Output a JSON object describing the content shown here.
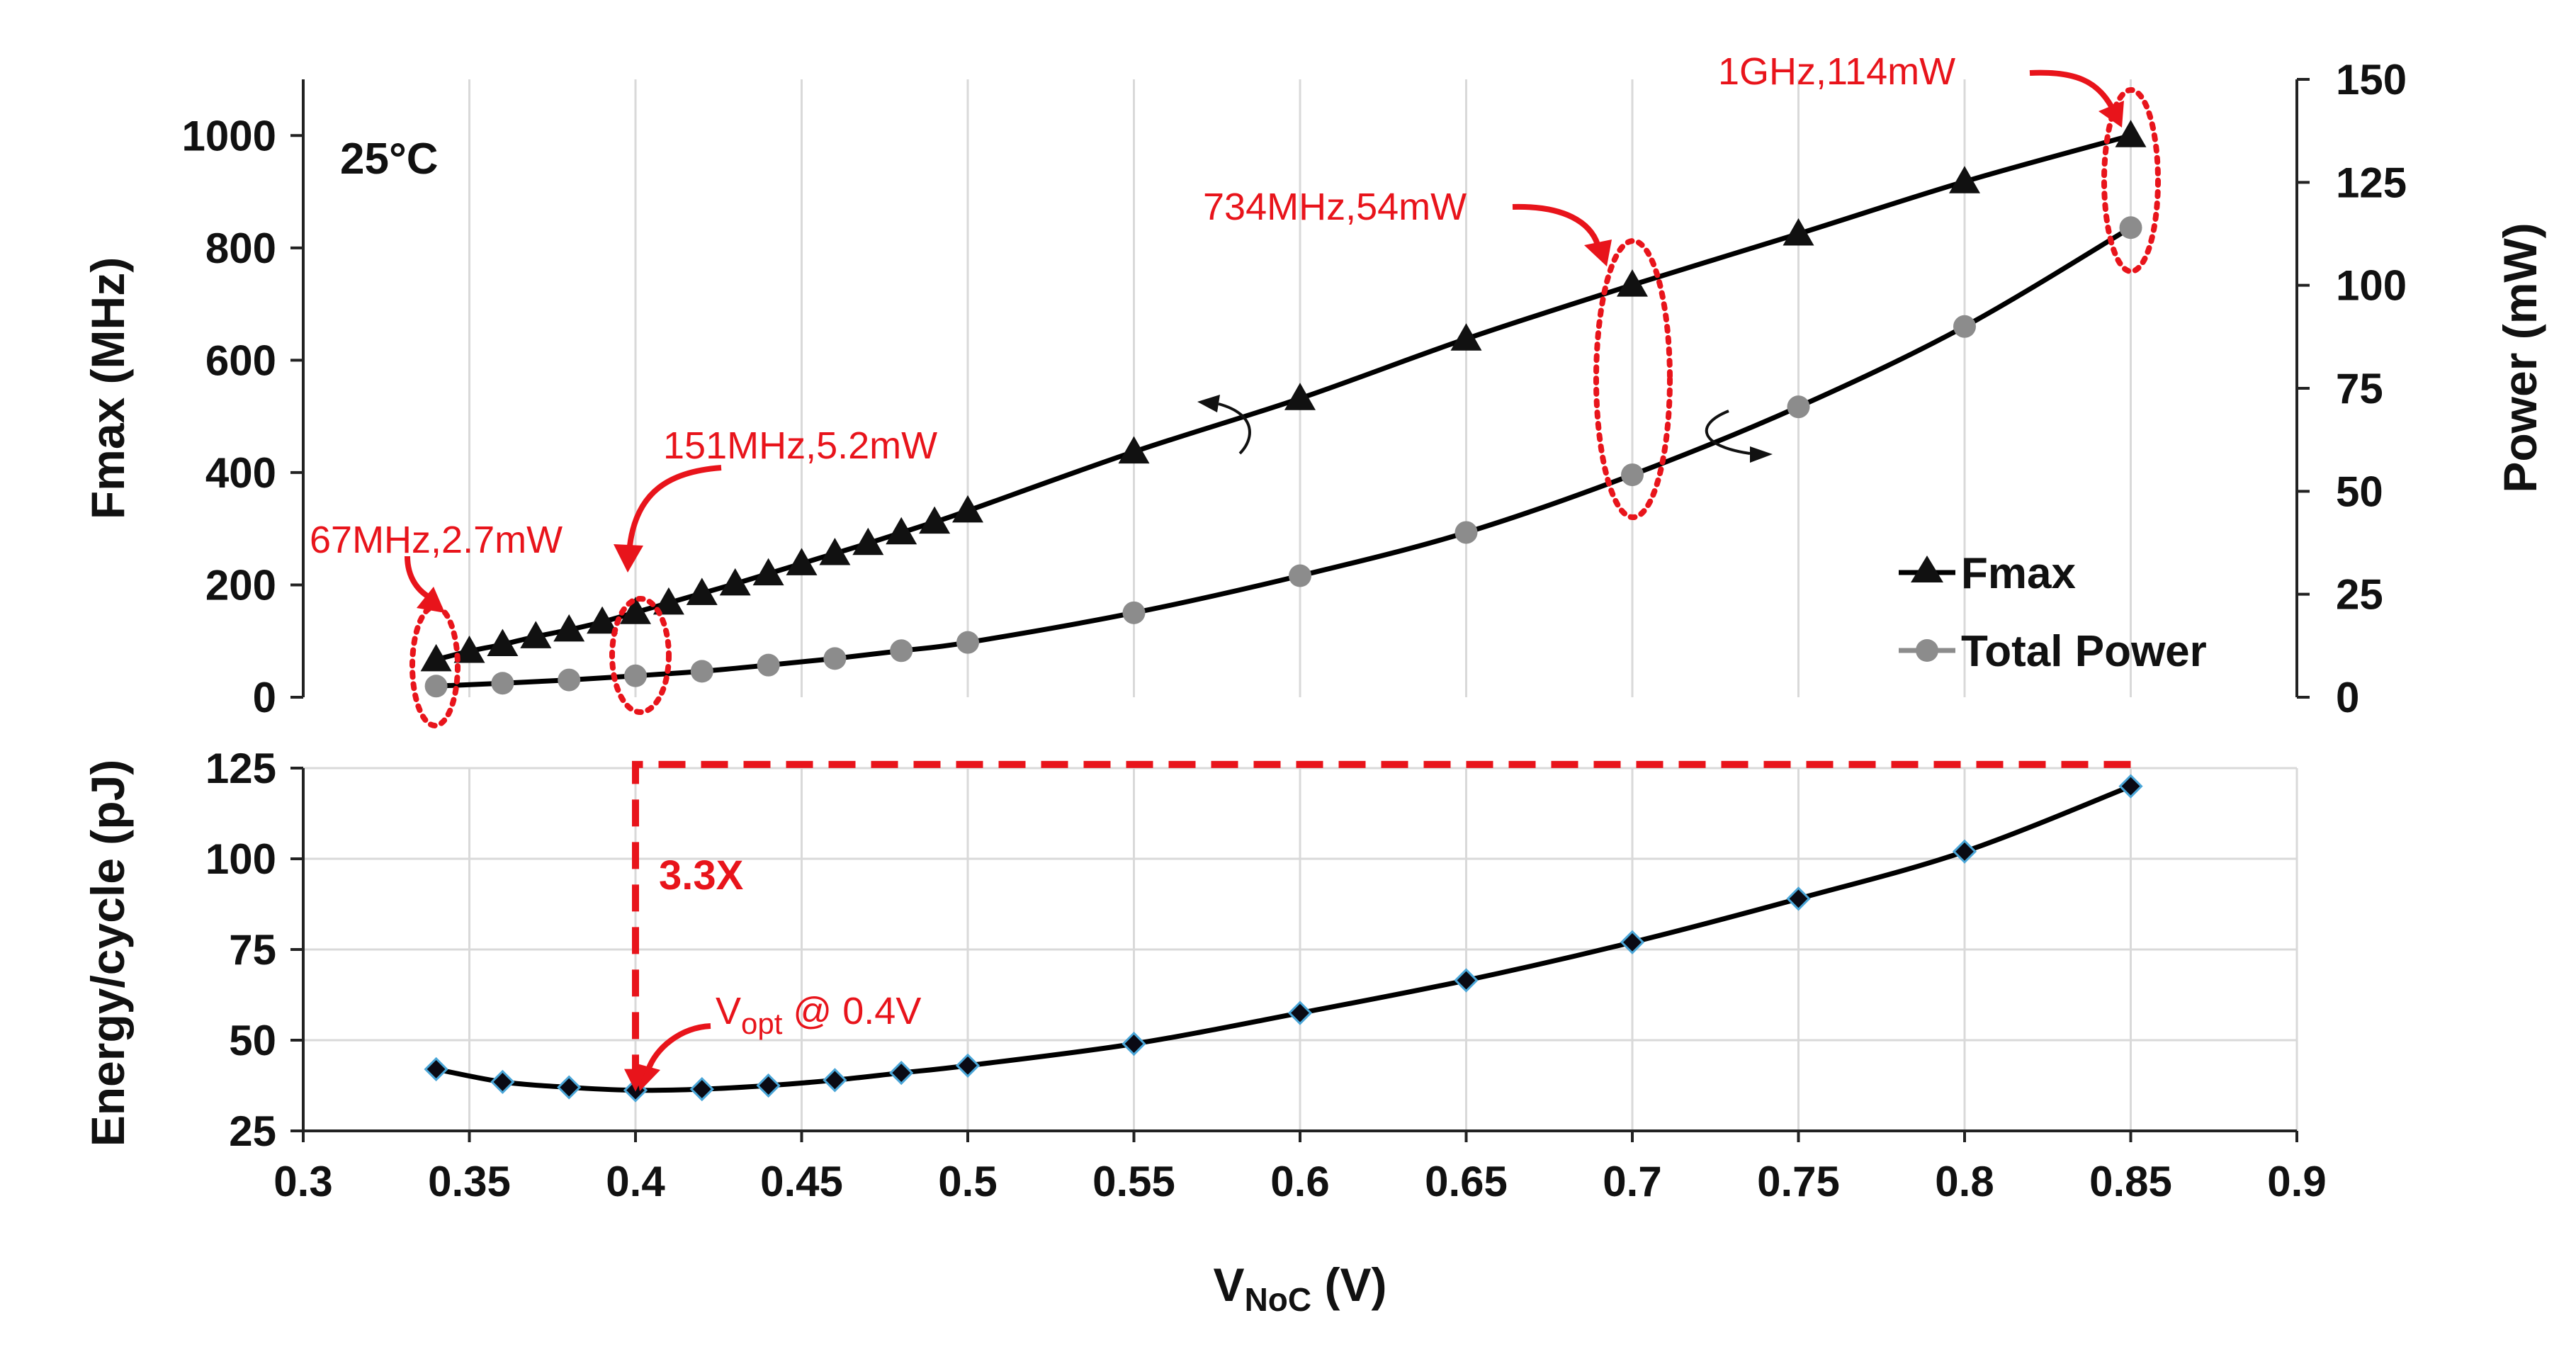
{
  "colors": {
    "fmax_marker": "#111111",
    "power_marker": "#8c8c8c",
    "energy_marker": "#0a0a14",
    "energy_marker_edge": "#4aa6d8",
    "annotation": "#e8141b",
    "grid": "#d9d9d9"
  },
  "chart_data": [
    {
      "type": "line",
      "title": "",
      "annotation_temp": "25°C",
      "xlabel_main": "V",
      "xlabel_sub": "NoC",
      "xlabel_unit": " (V)",
      "ylabel": "Fmax (MHz)",
      "y2label": "Power (mW)",
      "xlim": [
        0.3,
        0.9
      ],
      "ylim": [
        0,
        1100
      ],
      "y2lim": [
        0,
        150
      ],
      "yticks": [
        0,
        200,
        400,
        600,
        800,
        1000
      ],
      "y2ticks": [
        0,
        25,
        50,
        75,
        100,
        125,
        150
      ],
      "legend_position": "center-right",
      "series": [
        {
          "name": "Fmax",
          "axis": "left",
          "marker": "triangle",
          "x": [
            0.34,
            0.35,
            0.36,
            0.37,
            0.38,
            0.39,
            0.4,
            0.41,
            0.42,
            0.43,
            0.44,
            0.45,
            0.46,
            0.47,
            0.48,
            0.49,
            0.5,
            0.55,
            0.6,
            0.65,
            0.7,
            0.75,
            0.8,
            0.85
          ],
          "values": [
            67,
            82,
            94,
            108,
            120,
            134,
            151,
            168,
            185,
            202,
            220,
            238,
            256,
            274,
            293,
            312,
            332,
            437,
            532,
            638,
            734,
            825,
            918,
            1000
          ]
        },
        {
          "name": "Total Power",
          "axis": "right",
          "marker": "circle",
          "x": [
            0.34,
            0.36,
            0.38,
            0.4,
            0.42,
            0.44,
            0.46,
            0.48,
            0.5,
            0.55,
            0.6,
            0.65,
            0.7,
            0.75,
            0.8,
            0.85
          ],
          "values": [
            2.7,
            3.4,
            4.2,
            5.2,
            6.3,
            7.8,
            9.4,
            11.3,
            13.3,
            20.5,
            29.5,
            40,
            54,
            70.5,
            90,
            114
          ]
        }
      ],
      "annotations": [
        {
          "text": "67MHz,2.7mW",
          "x": 0.34
        },
        {
          "text": "151MHz,5.2mW",
          "x": 0.4
        },
        {
          "text": "734MHz,54mW",
          "x": 0.7
        },
        {
          "text": "1GHz,114mW",
          "x": 0.85
        }
      ]
    },
    {
      "type": "line",
      "title": "",
      "xlabel": "V_NoC (V)",
      "ylabel": "Energy/cycle (pJ)",
      "xlim": [
        0.3,
        0.9
      ],
      "ylim": [
        25,
        125
      ],
      "yticks": [
        25,
        50,
        75,
        100,
        125
      ],
      "xticks": [
        0.3,
        0.35,
        0.4,
        0.45,
        0.5,
        0.55,
        0.6,
        0.65,
        0.7,
        0.75,
        0.8,
        0.85,
        0.9
      ],
      "xtick_labels": [
        "0.3",
        "0.35",
        "0.4",
        "0.45",
        "0.5",
        "0.55",
        "0.6",
        "0.65",
        "0.7",
        "0.75",
        "0.8",
        "0.85",
        "0.9"
      ],
      "series": [
        {
          "name": "Energy/cycle",
          "marker": "diamond",
          "x": [
            0.34,
            0.36,
            0.38,
            0.4,
            0.42,
            0.44,
            0.46,
            0.48,
            0.5,
            0.55,
            0.6,
            0.65,
            0.7,
            0.75,
            0.8,
            0.85
          ],
          "values": [
            42,
            38.5,
            37,
            36.2,
            36.5,
            37.5,
            39,
            41,
            43,
            49,
            57.5,
            66.5,
            77,
            89,
            102,
            120
          ]
        }
      ],
      "ratio_label": "3.3X",
      "ratio_ref_level": 126,
      "vopt_main": "V",
      "vopt_sub": "opt",
      "vopt_rest": " @ 0.4V"
    }
  ]
}
